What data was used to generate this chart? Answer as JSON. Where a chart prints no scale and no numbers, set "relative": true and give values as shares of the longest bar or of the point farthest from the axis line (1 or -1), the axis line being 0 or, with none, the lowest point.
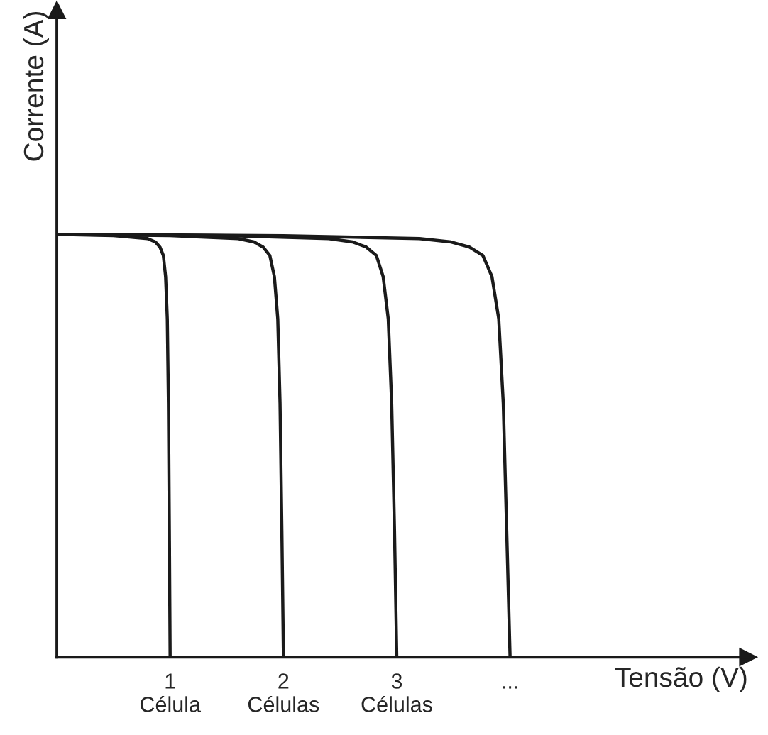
{
  "chart_data": {
    "type": "line",
    "relative": true,
    "xlabel": "Tensão (V)",
    "ylabel": "Corrente (A)",
    "xlim": [
      0,
      6.1
    ],
    "xticks": [
      {
        "value": 1,
        "label": "1\nCélula"
      },
      {
        "value": 2,
        "label": "2\nCélulas"
      },
      {
        "value": 3,
        "label": "3\nCélulas"
      },
      {
        "value": 4,
        "label": "..."
      }
    ],
    "grid": false,
    "marker": "none",
    "line_style": "solid",
    "series": [
      {
        "color": "#1a1a1a",
        "x": [
          0,
          0.5,
          0.8,
          0.87,
          0.91,
          0.94,
          0.96,
          0.975,
          0.985,
          0.993,
          1.0
        ],
        "values": [
          1,
          0.997,
          0.99,
          0.982,
          0.97,
          0.95,
          0.9,
          0.8,
          0.6,
          0.3,
          0
        ]
      },
      {
        "color": "#1a1a1a",
        "x": [
          0,
          1.0,
          1.6,
          1.74,
          1.82,
          1.88,
          1.92,
          1.95,
          1.97,
          1.986,
          2.0
        ],
        "values": [
          1,
          0.997,
          0.99,
          0.982,
          0.97,
          0.95,
          0.9,
          0.8,
          0.6,
          0.3,
          0
        ]
      },
      {
        "color": "#1a1a1a",
        "x": [
          0,
          1.5,
          2.4,
          2.61,
          2.73,
          2.82,
          2.88,
          2.925,
          2.955,
          2.98,
          3.0
        ],
        "values": [
          1,
          0.997,
          0.99,
          0.982,
          0.97,
          0.95,
          0.9,
          0.8,
          0.6,
          0.3,
          0
        ]
      },
      {
        "color": "#1a1a1a",
        "x": [
          0,
          2.0,
          3.2,
          3.48,
          3.64,
          3.76,
          3.84,
          3.9,
          3.94,
          3.97,
          4.0
        ],
        "values": [
          1,
          0.997,
          0.99,
          0.982,
          0.97,
          0.95,
          0.9,
          0.8,
          0.6,
          0.3,
          0
        ]
      }
    ]
  }
}
